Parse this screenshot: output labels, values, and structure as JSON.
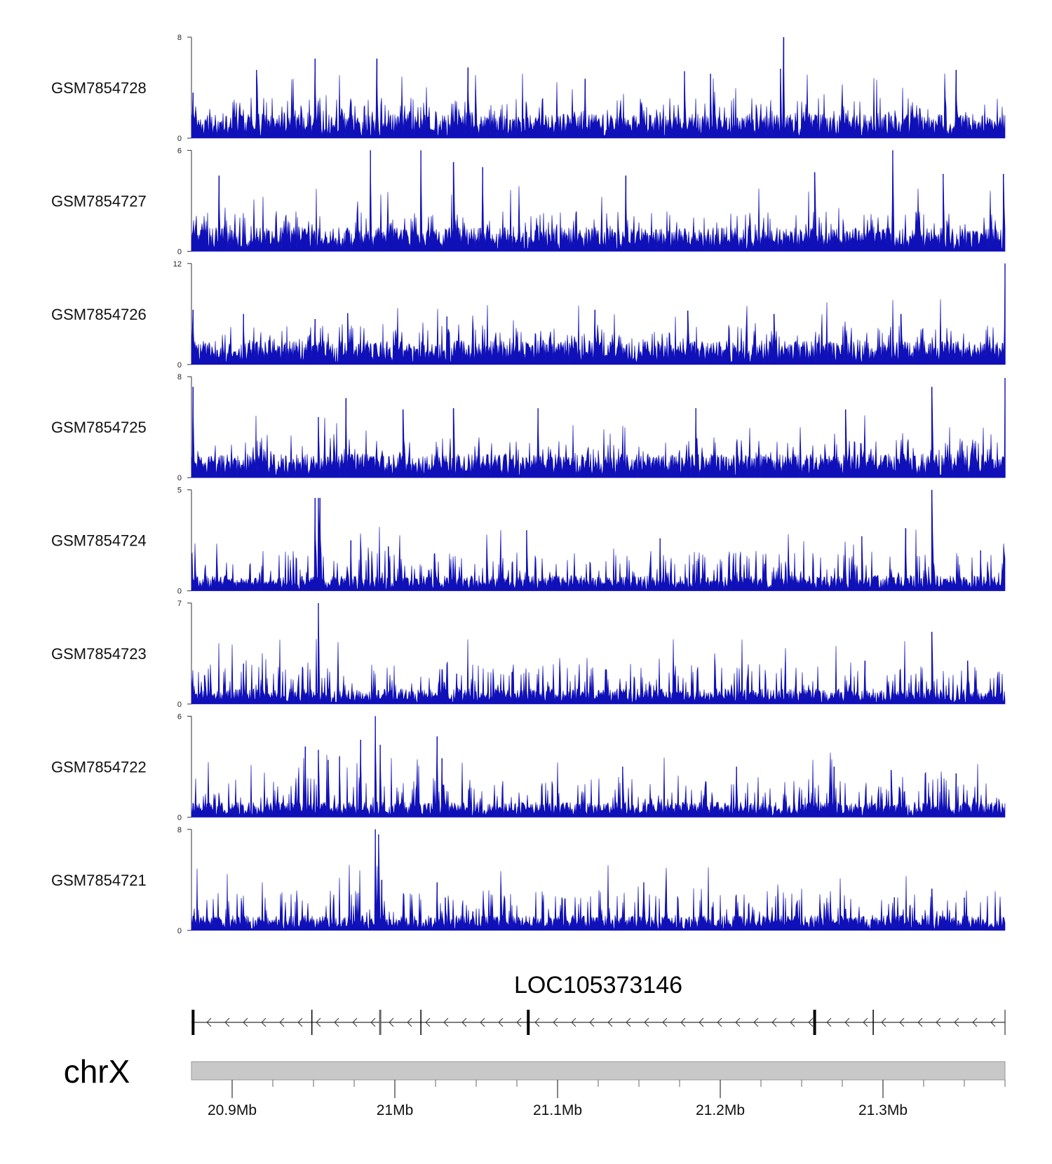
{
  "chart_data": {
    "type": "area",
    "title": "",
    "chromosome": "chrX",
    "xrange_mb": [
      20.875,
      21.375
    ],
    "x_ticks": [
      {
        "value": 20.9,
        "label": "20.9Mb"
      },
      {
        "value": 21.0,
        "label": "21Mb"
      },
      {
        "value": 21.1,
        "label": "21.1Mb"
      },
      {
        "value": 21.2,
        "label": "21.2Mb"
      },
      {
        "value": 21.3,
        "label": "21.3Mb"
      }
    ],
    "series_color": "#1010b8",
    "tracks": [
      {
        "name": "GSM7854728",
        "ymax": 8,
        "ymin_label": "0",
        "ymax_label": "8",
        "peaks": [
          [
            20.876,
            3.6
          ],
          [
            20.915,
            5.4
          ],
          [
            20.951,
            6.3
          ],
          [
            20.989,
            6.3
          ],
          [
            21.045,
            5.6
          ],
          [
            21.117,
            4.7
          ],
          [
            21.178,
            5.3
          ],
          [
            21.194,
            5.1
          ],
          [
            21.237,
            5.5
          ],
          [
            21.239,
            8.1
          ],
          [
            21.345,
            5.4
          ]
        ]
      },
      {
        "name": "GSM7854727",
        "ymax": 6,
        "ymin_label": "0",
        "ymax_label": "6",
        "peaks": [
          [
            20.892,
            4.5
          ],
          [
            20.985,
            6.0
          ],
          [
            21.016,
            6.0
          ],
          [
            21.036,
            5.3
          ],
          [
            21.054,
            5.0
          ],
          [
            21.142,
            4.5
          ],
          [
            21.258,
            4.7
          ],
          [
            21.306,
            6.0
          ],
          [
            21.337,
            4.6
          ],
          [
            21.374,
            4.6
          ]
        ]
      },
      {
        "name": "GSM7854726",
        "ymax": 12,
        "ymin_label": "0",
        "ymax_label": "12",
        "peaks": [
          [
            20.876,
            6.5
          ],
          [
            20.907,
            6.0
          ],
          [
            20.951,
            5.4
          ],
          [
            20.971,
            6.1
          ],
          [
            21.032,
            5.7
          ],
          [
            21.123,
            6.5
          ],
          [
            21.18,
            6.4
          ],
          [
            21.233,
            6.0
          ],
          [
            21.311,
            6.0
          ],
          [
            21.375,
            12.0
          ]
        ]
      },
      {
        "name": "GSM7854725",
        "ymax": 8,
        "ymin_label": "0",
        "ymax_label": "8",
        "peaks": [
          [
            20.876,
            7.2
          ],
          [
            20.953,
            4.8
          ],
          [
            20.97,
            6.3
          ],
          [
            21.005,
            5.4
          ],
          [
            21.036,
            5.5
          ],
          [
            21.088,
            5.5
          ],
          [
            21.185,
            5.5
          ],
          [
            21.277,
            5.4
          ],
          [
            21.33,
            7.2
          ],
          [
            21.375,
            7.9
          ]
        ]
      },
      {
        "name": "GSM7854724",
        "ymax": 5,
        "ymin_label": "0",
        "ymax_label": "5",
        "peaks": [
          [
            20.951,
            4.6
          ],
          [
            20.953,
            4.6
          ],
          [
            20.954,
            4.6
          ],
          [
            20.973,
            2.5
          ],
          [
            20.996,
            2.2
          ],
          [
            21.081,
            3.0
          ],
          [
            21.163,
            2.6
          ],
          [
            21.287,
            2.7
          ],
          [
            21.314,
            3.1
          ],
          [
            21.33,
            5.0
          ],
          [
            21.36,
            2.0
          ]
        ]
      },
      {
        "name": "GSM7854723",
        "ymax": 7,
        "ymin_label": "0",
        "ymax_label": "7",
        "peaks": [
          [
            20.883,
            2.0
          ],
          [
            20.907,
            2.8
          ],
          [
            20.953,
            7.0
          ],
          [
            20.965,
            2.3
          ],
          [
            21.038,
            2.1
          ],
          [
            21.072,
            2.2
          ],
          [
            21.172,
            2.0
          ],
          [
            21.289,
            3.0
          ],
          [
            21.33,
            5.0
          ],
          [
            21.352,
            3.0
          ]
        ]
      },
      {
        "name": "GSM7854722",
        "ymax": 6,
        "ymin_label": "0",
        "ymax_label": "6",
        "peaks": [
          [
            20.945,
            4.2
          ],
          [
            20.953,
            4.0
          ],
          [
            20.959,
            3.4
          ],
          [
            20.966,
            3.6
          ],
          [
            20.979,
            4.6
          ],
          [
            20.988,
            6.0
          ],
          [
            20.991,
            4.3
          ],
          [
            21.026,
            4.8
          ],
          [
            21.029,
            3.5
          ],
          [
            21.14,
            3.0
          ],
          [
            21.21,
            3.0
          ],
          [
            21.27,
            3.0
          ],
          [
            21.305,
            2.8
          ],
          [
            21.345,
            2.6
          ]
        ]
      },
      {
        "name": "GSM7854721",
        "ymax": 8,
        "ymin_label": "0",
        "ymax_label": "8",
        "peaks": [
          [
            20.988,
            8.0
          ],
          [
            20.99,
            7.6
          ],
          [
            20.992,
            4.0
          ],
          [
            21.026,
            3.8
          ],
          [
            21.031,
            2.6
          ],
          [
            21.048,
            1.5
          ],
          [
            21.153,
            3.8
          ],
          [
            21.21,
            1.7
          ],
          [
            21.277,
            1.7
          ],
          [
            21.307,
            2.6
          ],
          [
            21.33,
            3.3
          ],
          [
            21.35,
            2.6
          ]
        ]
      }
    ],
    "gene": {
      "name": "LOC105373146",
      "strand": "-",
      "start_mb": 20.875,
      "end_mb": 21.375,
      "exons_mb": [
        20.876,
        20.949,
        20.991,
        21.016,
        21.082,
        21.258,
        21.294
      ]
    },
    "ideogram_color": "#c8c8c8"
  }
}
